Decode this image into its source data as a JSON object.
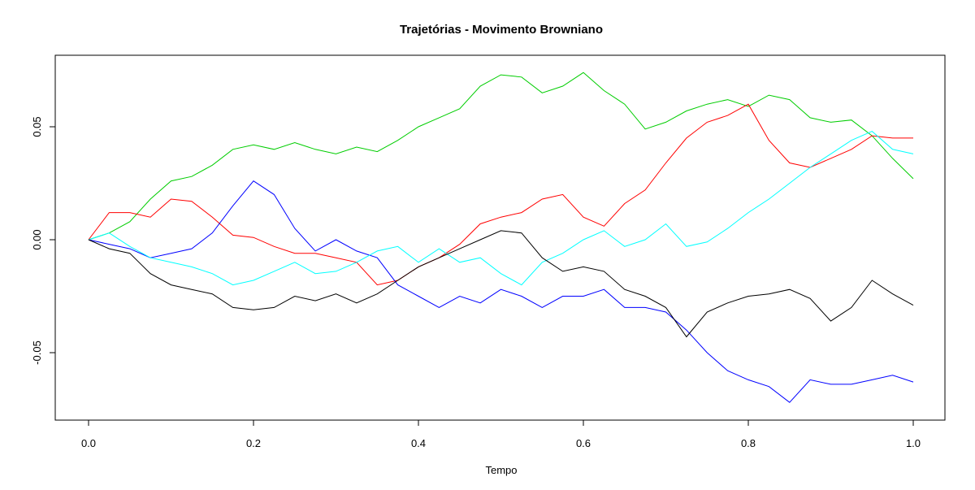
{
  "chart_data": {
    "type": "line",
    "title": "Trajetórias - Movimento Browniano",
    "xlabel": "Tempo",
    "ylabel": "",
    "xlim": [
      0,
      1
    ],
    "ylim": [
      -0.075,
      0.076
    ],
    "xticks": [
      "0.0",
      "0.2",
      "0.4",
      "0.6",
      "0.8",
      "1.0"
    ],
    "yticks": [
      "-0.05",
      "0.00",
      "0.05"
    ],
    "grid": false,
    "legend": "none",
    "x": [
      0,
      0.025,
      0.05,
      0.075,
      0.1,
      0.125,
      0.15,
      0.175,
      0.2,
      0.225,
      0.25,
      0.275,
      0.3,
      0.325,
      0.35,
      0.375,
      0.4,
      0.425,
      0.45,
      0.475,
      0.5,
      0.525,
      0.55,
      0.575,
      0.6,
      0.625,
      0.65,
      0.675,
      0.7,
      0.725,
      0.75,
      0.775,
      0.8,
      0.825,
      0.85,
      0.875,
      0.9,
      0.925,
      0.95,
      0.975,
      1.0
    ],
    "series": [
      {
        "color": "#00cd00",
        "values": [
          0,
          0.003,
          0.008,
          0.018,
          0.026,
          0.028,
          0.033,
          0.04,
          0.042,
          0.04,
          0.043,
          0.04,
          0.038,
          0.041,
          0.039,
          0.044,
          0.05,
          0.054,
          0.058,
          0.068,
          0.073,
          0.072,
          0.065,
          0.068,
          0.074,
          0.066,
          0.06,
          0.049,
          0.052,
          0.057,
          0.06,
          0.062,
          0.059,
          0.064,
          0.062,
          0.054,
          0.052,
          0.053,
          0.046,
          0.036,
          0.027
        ]
      },
      {
        "color": "#ff0000",
        "values": [
          0,
          0.012,
          0.012,
          0.01,
          0.018,
          0.017,
          0.01,
          0.002,
          0.001,
          -0.003,
          -0.006,
          -0.006,
          -0.008,
          -0.01,
          -0.02,
          -0.018,
          -0.012,
          -0.008,
          -0.002,
          0.007,
          0.01,
          0.012,
          0.018,
          0.02,
          0.01,
          0.006,
          0.016,
          0.022,
          0.034,
          0.045,
          0.052,
          0.055,
          0.06,
          0.044,
          0.034,
          0.032,
          0.036,
          0.04,
          0.046,
          0.045,
          0.045
        ]
      },
      {
        "color": "#0000ff",
        "values": [
          0,
          -0.002,
          -0.004,
          -0.008,
          -0.006,
          -0.004,
          0.003,
          0.015,
          0.026,
          0.02,
          0.005,
          -0.005,
          0.0,
          -0.005,
          -0.008,
          -0.02,
          -0.025,
          -0.03,
          -0.025,
          -0.028,
          -0.022,
          -0.025,
          -0.03,
          -0.025,
          -0.025,
          -0.022,
          -0.03,
          -0.03,
          -0.032,
          -0.04,
          -0.05,
          -0.058,
          -0.062,
          -0.065,
          -0.072,
          -0.062,
          -0.064,
          -0.064,
          -0.062,
          -0.06,
          -0.063
        ]
      },
      {
        "color": "#00ffff",
        "values": [
          0,
          0.003,
          -0.003,
          -0.008,
          -0.01,
          -0.012,
          -0.015,
          -0.02,
          -0.018,
          -0.014,
          -0.01,
          -0.015,
          -0.014,
          -0.01,
          -0.005,
          -0.003,
          -0.01,
          -0.004,
          -0.01,
          -0.008,
          -0.015,
          -0.02,
          -0.01,
          -0.006,
          0.0,
          0.004,
          -0.003,
          0.0,
          0.007,
          -0.003,
          -0.001,
          0.005,
          0.012,
          0.018,
          0.025,
          0.032,
          0.038,
          0.044,
          0.048,
          0.04,
          0.038
        ]
      },
      {
        "color": "#000000",
        "values": [
          0,
          -0.004,
          -0.006,
          -0.015,
          -0.02,
          -0.022,
          -0.024,
          -0.03,
          -0.031,
          -0.03,
          -0.025,
          -0.027,
          -0.024,
          -0.028,
          -0.024,
          -0.018,
          -0.012,
          -0.008,
          -0.004,
          0.0,
          0.004,
          0.003,
          -0.008,
          -0.014,
          -0.012,
          -0.014,
          -0.022,
          -0.025,
          -0.03,
          -0.043,
          -0.032,
          -0.028,
          -0.025,
          -0.024,
          -0.022,
          -0.026,
          -0.036,
          -0.03,
          -0.018,
          -0.024,
          -0.029
        ]
      }
    ]
  }
}
